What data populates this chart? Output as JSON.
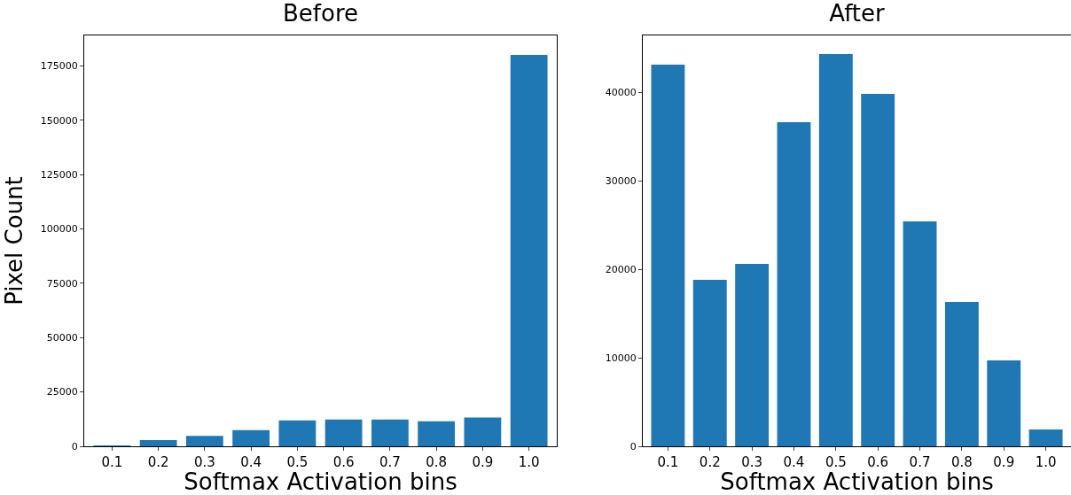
{
  "chart_data": [
    {
      "type": "bar",
      "title": "Before",
      "xlabel": "Softmax Activation bins",
      "ylabel": "Pixel Count",
      "categories": [
        "0.1",
        "0.2",
        "0.3",
        "0.4",
        "0.5",
        "0.6",
        "0.7",
        "0.8",
        "0.9",
        "1.0"
      ],
      "color": "#1f77b4",
      "values": [
        300,
        2850,
        4800,
        7400,
        11900,
        12300,
        12300,
        11500,
        13200,
        180000
      ],
      "ylim": [
        0,
        189000
      ],
      "yticks": [
        0,
        25000,
        50000,
        75000,
        100000,
        125000,
        150000,
        175000
      ],
      "grid": false,
      "legend": false
    },
    {
      "type": "bar",
      "title": "After",
      "xlabel": "Softmax Activation bins",
      "categories": [
        "0.1",
        "0.2",
        "0.3",
        "0.4",
        "0.5",
        "0.6",
        "0.7",
        "0.8",
        "0.9",
        "1.0"
      ],
      "color": "#1f77b4",
      "values": [
        43100,
        18800,
        20600,
        36600,
        44300,
        39800,
        25400,
        16300,
        9700,
        1900
      ],
      "ylim": [
        0,
        46400
      ],
      "yticks": [
        0,
        10000,
        20000,
        30000,
        40000
      ],
      "grid": false,
      "legend": false
    }
  ]
}
